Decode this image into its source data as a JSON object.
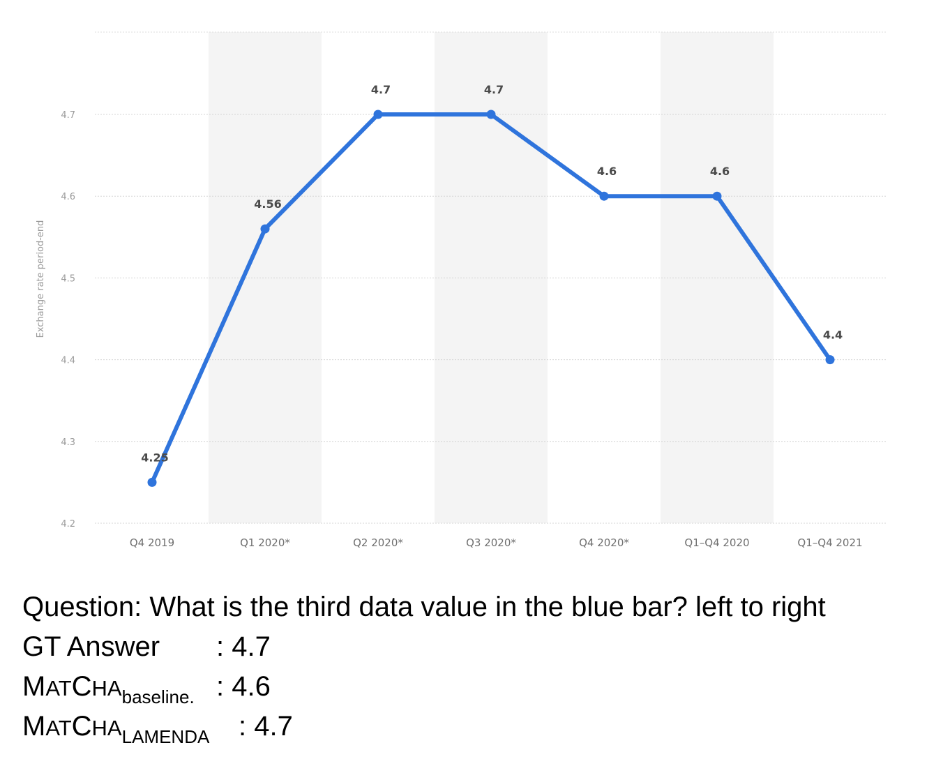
{
  "chart_data": {
    "type": "line",
    "categories": [
      "Q4 2019",
      "Q1 2020*",
      "Q2 2020*",
      "Q3 2020*",
      "Q4 2020*",
      "Q1-Q4 2020",
      "Q1-Q4 2021"
    ],
    "tick_labels": [
      "Q4 2019",
      "Q1 2020*",
      "Q2 2020*",
      "Q3 2020*",
      "Q4 2020*",
      "Q1–Q4 2020",
      "Q1–Q4 2021"
    ],
    "values": [
      4.25,
      4.56,
      4.7,
      4.7,
      4.6,
      4.6,
      4.4
    ],
    "data_labels": [
      "4.25",
      "4.56",
      "4.7",
      "4.7",
      "4.6",
      "4.6",
      "4.4"
    ],
    "ylabel": "Exchange rate period-end",
    "yticks": [
      "4.2",
      "4.3",
      "4.4",
      "4.5",
      "4.6",
      "4.7"
    ],
    "ylim": [
      4.2,
      4.72
    ],
    "grid": true,
    "line_color": "#2f74dc",
    "band_color": "#f4f4f4"
  },
  "qa": {
    "question": "Question: What is the third data value in the blue bar? left to right",
    "gt_label": "GT Answer",
    "gt_value": ": 4.7",
    "baseline_m": "M",
    "baseline_at": "AT",
    "baseline_c": "C",
    "baseline_ha": "HA",
    "baseline_sub": "baseline.",
    "baseline_value": ": 4.6",
    "lamenda_m": "M",
    "lamenda_at": "AT",
    "lamenda_c": "C",
    "lamenda_ha": "HA",
    "lamenda_sub": "LAMENDA",
    "lamenda_value": ": 4.7"
  }
}
